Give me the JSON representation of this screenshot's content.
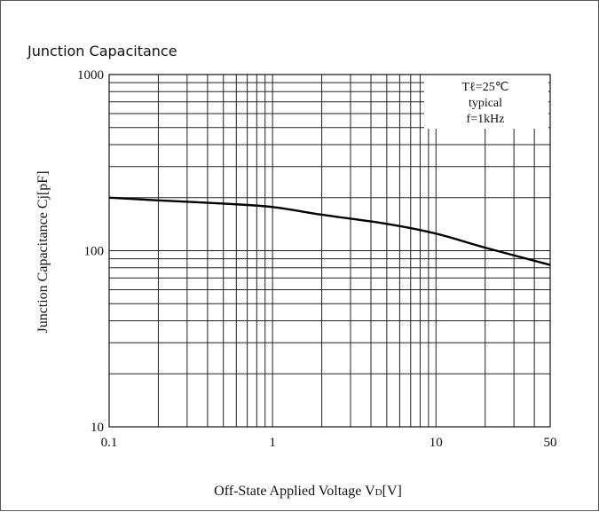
{
  "title": "Junction Capacitance",
  "chart_data": {
    "type": "line",
    "title": "Junction Capacitance",
    "xlabel": "Off-State Applied Voltage",
    "xlabel_symbol": "V",
    "xlabel_subscript": "D",
    "xlabel_unit": "[V]",
    "ylabel": "Junction Capacitance Cj[pF]",
    "xscale": "log",
    "yscale": "log",
    "xlim": [
      0.1,
      50
    ],
    "ylim": [
      10,
      1000
    ],
    "grid": true,
    "x_ticks": [
      {
        "value": 0.1,
        "label": "0.1"
      },
      {
        "value": 1,
        "label": "1"
      },
      {
        "value": 10,
        "label": "10"
      },
      {
        "value": 50,
        "label": "50"
      }
    ],
    "y_ticks": [
      {
        "value": 1000,
        "label": "1000"
      },
      {
        "value": 100,
        "label": "100"
      },
      {
        "value": 10,
        "label": "10"
      }
    ],
    "annotation": [
      "Tℓ=25℃",
      "typical",
      "f=1kHz"
    ],
    "series": [
      {
        "x": [
          0.1,
          0.2,
          0.5,
          1,
          2,
          5,
          10,
          20,
          50
        ],
        "y": [
          200,
          193,
          185,
          177,
          160,
          142,
          125,
          104,
          83
        ]
      }
    ]
  }
}
